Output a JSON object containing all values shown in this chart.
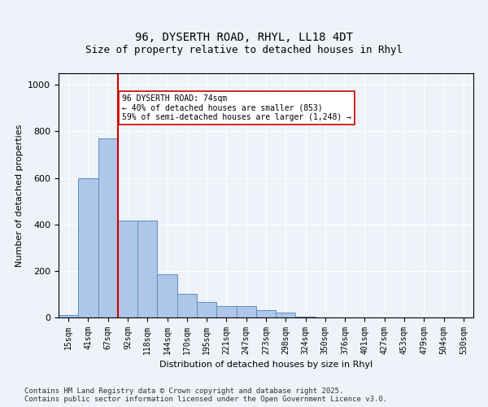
{
  "title1": "96, DYSERTH ROAD, RHYL, LL18 4DT",
  "title2": "Size of property relative to detached houses in Rhyl",
  "xlabel": "Distribution of detached houses by size in Rhyl",
  "ylabel": "Number of detached properties",
  "categories": [
    "15sqm",
    "41sqm",
    "67sqm",
    "92sqm",
    "118sqm",
    "144sqm",
    "170sqm",
    "195sqm",
    "221sqm",
    "247sqm",
    "273sqm",
    "298sqm",
    "324sqm",
    "350sqm",
    "376sqm",
    "401sqm",
    "427sqm",
    "453sqm",
    "479sqm",
    "504sqm",
    "530sqm"
  ],
  "values": [
    10,
    600,
    770,
    415,
    415,
    185,
    100,
    65,
    50,
    50,
    30,
    20,
    5,
    0,
    0,
    0,
    0,
    0,
    0,
    0,
    0
  ],
  "bar_color": "#aec6e8",
  "bar_edge_color": "#5a8fc0",
  "vline_x": 2.5,
  "vline_color": "#cc0000",
  "annotation_text": "96 DYSERTH ROAD: 74sqm\n← 40% of detached houses are smaller (853)\n59% of semi-detached houses are larger (1,248) →",
  "annotation_box_color": "#ffffff",
  "annotation_box_edge_color": "#cc0000",
  "ylim": [
    0,
    1050
  ],
  "yticks": [
    0,
    200,
    400,
    600,
    800,
    1000
  ],
  "footer": "Contains HM Land Registry data © Crown copyright and database right 2025.\nContains public sector information licensed under the Open Government Licence v3.0.",
  "bg_color": "#eef2f9",
  "plot_bg_color": "#eef2f9",
  "grid_color": "#ffffff"
}
